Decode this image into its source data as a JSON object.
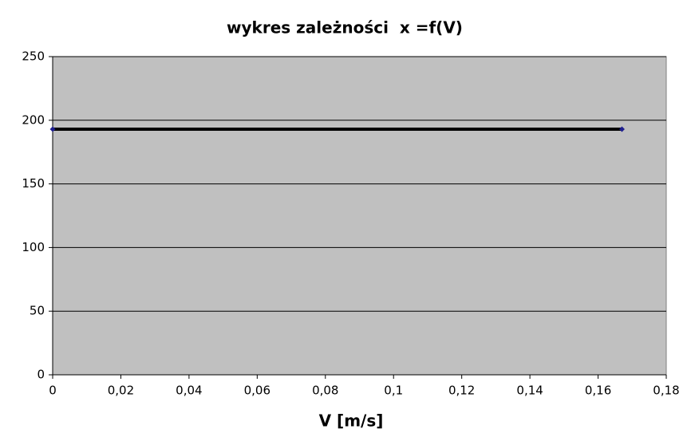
{
  "chart_data": {
    "type": "line",
    "title": "wykres zależności  x =f(V)",
    "x_label": "V [m/s]",
    "x": [
      0,
      0.167
    ],
    "series": [
      {
        "values": [
          193,
          193
        ],
        "color": "#000000",
        "marker_color": "#1f1f8f"
      }
    ],
    "xlim": [
      0,
      0.18
    ],
    "xticks": [
      0,
      {
        "value": 0.02,
        "label": "0,02"
      },
      {
        "value": 0.04,
        "label": "0,04"
      },
      {
        "value": 0.06,
        "label": "0,06"
      },
      {
        "value": 0.08,
        "label": "0,08"
      },
      {
        "value": 0.1,
        "label": "0,1"
      },
      {
        "value": 0.12,
        "label": "0,12"
      },
      {
        "value": 0.14,
        "label": "0,14"
      },
      {
        "value": 0.16,
        "label": "0,16"
      },
      {
        "value": 0.18,
        "label": "0,18"
      }
    ],
    "ylim": [
      0,
      250
    ],
    "yticks": [
      0,
      50,
      100,
      150,
      200,
      250
    ],
    "grid": true,
    "plot_background": "#c0c0c0"
  }
}
